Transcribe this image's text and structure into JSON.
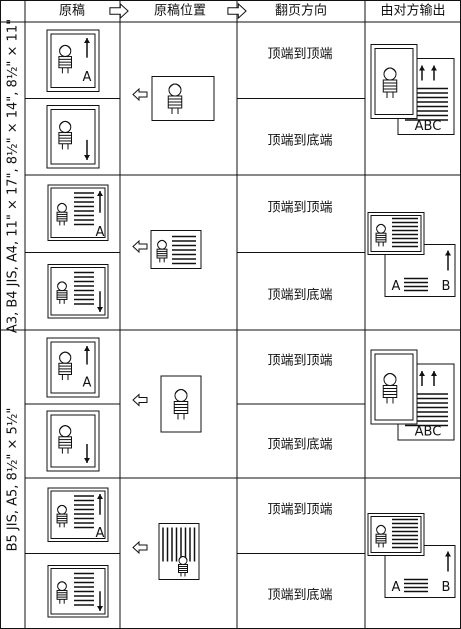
{
  "header": [
    "原稿",
    "原稿位置",
    "翻页方向",
    "由对方输出"
  ],
  "sections": [
    {
      "label": "A3, B4 JIS, A4, 11\" × 17\", 8½\" × 14\", 8½\" × 11\"",
      "blocks": [
        {
          "original_letter": "A",
          "directions": [
            "顶端到顶端",
            "顶端到底端"
          ],
          "output_letters": [
            "ABC"
          ]
        },
        {
          "original_letter": "A",
          "directions": [
            "顶端到顶端",
            "顶端到底端"
          ],
          "output_letters": [
            "A",
            "B"
          ]
        }
      ]
    },
    {
      "label": "B5 JIS, A5, 8½\" × 5½\"",
      "blocks": [
        {
          "original_letter": "A",
          "directions": [
            "顶端到顶端",
            "顶端到底端"
          ],
          "output_letters": [
            "ABC"
          ]
        },
        {
          "original_letter": "A",
          "directions": [
            "顶端到顶端",
            "顶端到底端"
          ],
          "output_letters": [
            "A",
            "B"
          ]
        }
      ]
    }
  ]
}
